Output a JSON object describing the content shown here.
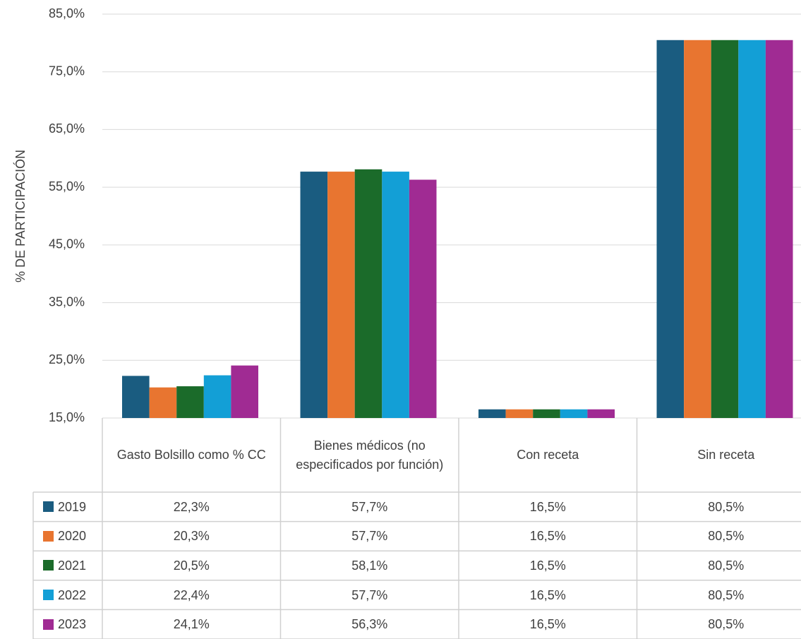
{
  "chart_data": {
    "type": "bar",
    "y_axis_label": "% DE PARTICIPACIÓN",
    "categories": [
      "Gasto Bolsillo como % CC",
      "Bienes médicos (no especificados por función)",
      "Con receta",
      "Sin receta"
    ],
    "series": [
      {
        "name": "2019",
        "color": "#1a5c80",
        "values": [
          22.3,
          57.7,
          16.5,
          80.5
        ],
        "value_labels": [
          "22,3%",
          "57,7%",
          "16,5%",
          "80,5%"
        ]
      },
      {
        "name": "2020",
        "color": "#e87530",
        "values": [
          20.3,
          57.7,
          16.5,
          80.5
        ],
        "value_labels": [
          "20,3%",
          "57,7%",
          "16,5%",
          "80,5%"
        ]
      },
      {
        "name": "2021",
        "color": "#1b6b2a",
        "values": [
          20.5,
          58.1,
          16.5,
          80.5
        ],
        "value_labels": [
          "20,5%",
          "58,1%",
          "16,5%",
          "80,5%"
        ]
      },
      {
        "name": "2022",
        "color": "#139fd6",
        "values": [
          22.4,
          57.7,
          16.5,
          80.5
        ],
        "value_labels": [
          "22,4%",
          "57,7%",
          "16,5%",
          "80,5%"
        ]
      },
      {
        "name": "2023",
        "color": "#a02b93",
        "values": [
          24.1,
          56.3,
          16.5,
          80.5
        ],
        "value_labels": [
          "24,1%",
          "56,3%",
          "16,5%",
          "80,5%"
        ]
      }
    ],
    "ylim": [
      15,
      85
    ],
    "yticks": [
      {
        "value": 15,
        "label": "15,0%"
      },
      {
        "value": 25,
        "label": "25,0%"
      },
      {
        "value": 35,
        "label": "35,0%"
      },
      {
        "value": 45,
        "label": "45,0%"
      },
      {
        "value": 55,
        "label": "55,0%"
      },
      {
        "value": 65,
        "label": "65,0%"
      },
      {
        "value": 75,
        "label": "75,0%"
      },
      {
        "value": 85,
        "label": "85,0%"
      }
    ],
    "grid": true
  }
}
